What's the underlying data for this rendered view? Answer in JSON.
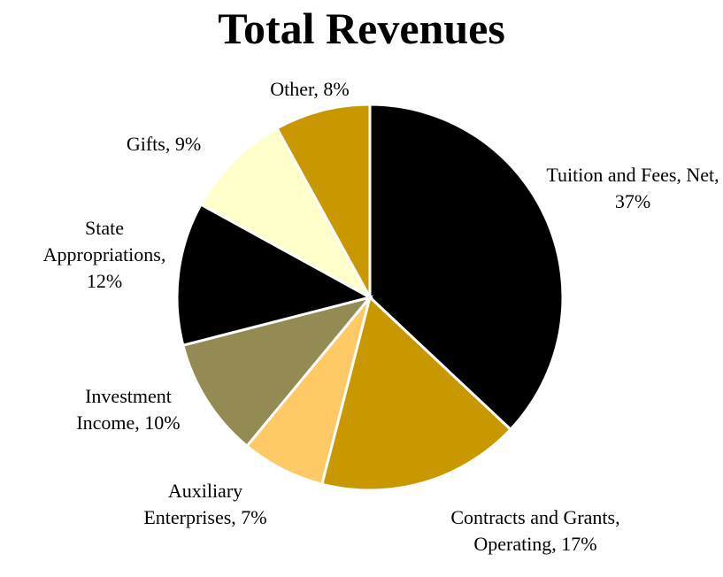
{
  "chart_data": {
    "type": "pie",
    "title": "Total Revenues",
    "categories": [
      "Tuition and Fees, Net",
      "Contracts and Grants, Operating",
      "Auxiliary Enterprises",
      "Investment Income",
      "State Appropriations",
      "Gifts",
      "Other"
    ],
    "values": [
      37,
      17,
      7,
      10,
      12,
      9,
      8
    ],
    "value_labels": [
      "Tuition and Fees, Net, 37%",
      "Contracts and Grants, Operating, 17%",
      "Auxiliary Enterprises, 7%",
      "Investment Income, 10%",
      "State Appropriations, 12%",
      "Gifts, 9%",
      "Other, 8%"
    ],
    "colors": [
      "#000000",
      "#c99700",
      "#ffc966",
      "#948a54",
      "#000000",
      "#ffffcc",
      "#c99700"
    ]
  }
}
